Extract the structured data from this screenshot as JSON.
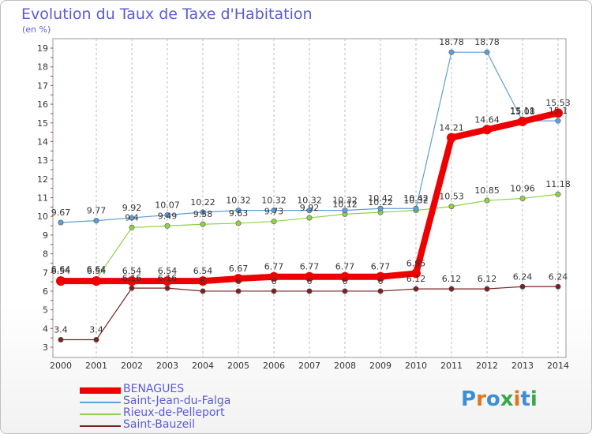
{
  "title": "Evolution du Taux de Taxe d'Habitation",
  "unit": "(en %)",
  "logo": {
    "text": "Proxiti",
    "letter_colors": [
      "#3a8fd6",
      "#e0761c",
      "#3a8fd6",
      "#3aa84a",
      "#e0761c",
      "#3a8fd6",
      "#3aa84a"
    ]
  },
  "chart_data": {
    "type": "line",
    "x": [
      "2000",
      "2001",
      "2002",
      "2003",
      "2004",
      "2005",
      "2006",
      "2007",
      "2008",
      "2009",
      "2010",
      "2011",
      "2012",
      "2013",
      "2014"
    ],
    "ylim": [
      3,
      19
    ],
    "yticks": [
      "3",
      "4",
      "5",
      "6",
      "7",
      "8",
      "9",
      "10",
      "11",
      "12",
      "13",
      "14",
      "15",
      "16",
      "17",
      "18",
      "19"
    ],
    "grid": "vertical dashed",
    "legend_position": "bottom-left",
    "series": [
      {
        "name": "BENAGUES",
        "color": "#ee0000",
        "values": [
          6.54,
          6.54,
          6.54,
          6.54,
          6.54,
          6.67,
          6.77,
          6.77,
          6.77,
          6.77,
          6.95,
          14.21,
          14.64,
          15.08,
          15.53
        ],
        "labels": [
          "6.54",
          "6.54",
          "6.54",
          "6.54",
          "6.54",
          "6.67",
          "6.77",
          "6.77",
          "6.77",
          "6.77",
          "6.95",
          "14.21",
          "14.64",
          "15.08",
          "15.53"
        ]
      },
      {
        "name": "Saint-Jean-du-Falga",
        "color": "#5f9fd8",
        "values": [
          9.67,
          9.77,
          9.92,
          10.07,
          10.22,
          10.32,
          10.32,
          10.32,
          10.32,
          10.42,
          10.42,
          18.78,
          18.78,
          15.11,
          15.11
        ],
        "labels": [
          "9.67",
          "9.77",
          "9.92",
          "10.07",
          "10.22",
          "10.32",
          "10.32",
          "10.32",
          "10.32",
          "10.42",
          "10.42",
          "18.78",
          "18.78",
          "15.11",
          "15.1"
        ]
      },
      {
        "name": "Rieux-de-Pelleport",
        "color": "#8ed24a",
        "values": [
          6.64,
          6.64,
          9.4,
          9.49,
          9.58,
          9.63,
          9.73,
          9.92,
          10.12,
          10.22,
          10.32,
          10.53,
          10.85,
          10.96,
          11.18
        ],
        "labels": [
          "6.64",
          "6.64",
          "9.4",
          "9.49",
          "9.58",
          "9.63",
          "9.73",
          "9.92",
          "10.12",
          "10.22",
          "10.32",
          "10.53",
          "10.85",
          "10.96",
          "11.18"
        ]
      },
      {
        "name": "Saint-Bauzeil",
        "color": "#7a2222",
        "values": [
          3.4,
          3.4,
          6.16,
          6.16,
          6,
          6,
          6,
          6,
          6,
          6,
          6.12,
          6.12,
          6.12,
          6.24,
          6.24
        ],
        "labels": [
          "3.4",
          "3.4",
          "6.16",
          "6.16",
          "6",
          "6",
          "6",
          "6",
          "6",
          "6",
          "6.12",
          "6.12",
          "6.12",
          "6.24",
          "6.24"
        ]
      }
    ]
  }
}
